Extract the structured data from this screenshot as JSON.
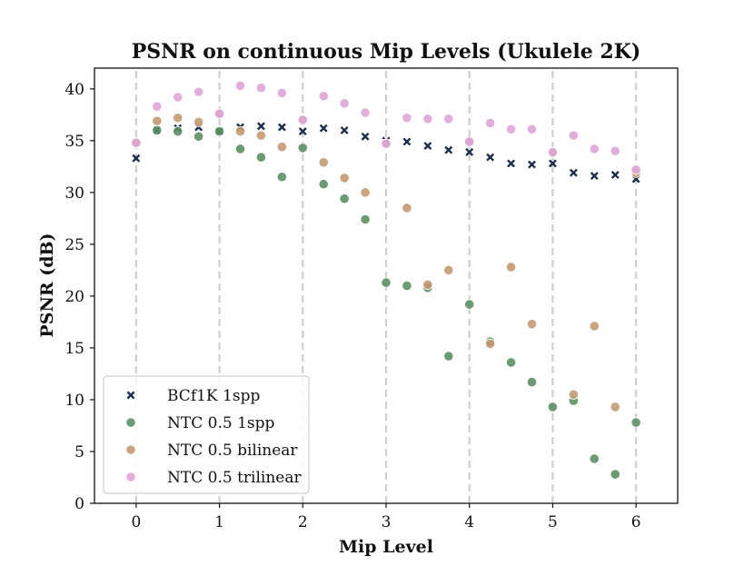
{
  "chart_data": {
    "type": "scatter",
    "title": "PSNR on continuous Mip Levels (Ukulele 2K)",
    "xlabel": "Mip Level",
    "ylabel": "PSNR (dB)",
    "xlim": [
      -0.5,
      6.5
    ],
    "ylim": [
      0,
      42
    ],
    "xticks": [
      0,
      1,
      2,
      3,
      4,
      5,
      6
    ],
    "yticks": [
      0,
      5,
      10,
      15,
      20,
      25,
      30,
      35,
      40
    ],
    "vlines": [
      0,
      1,
      2,
      3,
      4,
      5,
      6
    ],
    "legend_position": "bottom-left",
    "series": [
      {
        "name": "BCf1K 1spp",
        "marker": "x",
        "color": "#1c2e4a",
        "x": [
          0,
          0.25,
          0.5,
          0.75,
          1,
          1.25,
          1.5,
          1.75,
          2,
          2.25,
          2.5,
          2.75,
          3,
          3.25,
          3.5,
          3.75,
          4,
          4.25,
          4.5,
          4.75,
          5,
          5.25,
          5.5,
          5.75,
          6
        ],
        "y": [
          33.3,
          36.0,
          36.2,
          36.3,
          35.9,
          36.3,
          36.4,
          36.3,
          35.9,
          36.2,
          36.0,
          35.4,
          35.0,
          34.9,
          34.5,
          34.1,
          33.9,
          33.4,
          32.8,
          32.7,
          32.8,
          31.9,
          31.6,
          31.7,
          31.3
        ]
      },
      {
        "name": "NTC 0.5 1spp",
        "marker": "o",
        "color": "#5b8f64",
        "x": [
          0,
          0.25,
          0.5,
          0.75,
          1,
          1.25,
          1.5,
          1.75,
          2,
          2.25,
          2.5,
          2.75,
          3,
          3.25,
          3.5,
          3.75,
          4,
          4.25,
          4.5,
          4.75,
          5,
          5.25,
          5.5,
          5.75,
          6
        ],
        "y": [
          34.8,
          36.0,
          35.9,
          35.4,
          35.9,
          34.2,
          33.4,
          31.5,
          34.3,
          30.8,
          29.4,
          27.4,
          21.3,
          21.0,
          20.8,
          14.2,
          19.2,
          15.6,
          13.6,
          11.7,
          9.3,
          9.9,
          4.3,
          2.8,
          7.8
        ]
      },
      {
        "name": "NTC 0.5 bilinear",
        "marker": "o",
        "color": "#c29a72",
        "x": [
          0,
          0.25,
          0.5,
          0.75,
          1,
          1.25,
          1.5,
          1.75,
          2,
          2.25,
          2.5,
          2.75,
          3,
          3.25,
          3.5,
          3.75,
          4,
          4.25,
          4.5,
          4.75,
          5,
          5.25,
          5.5,
          5.75,
          6
        ],
        "y": [
          34.8,
          36.9,
          37.2,
          36.8,
          37.6,
          35.9,
          35.5,
          34.4,
          37.0,
          32.9,
          31.4,
          30.0,
          34.7,
          28.5,
          21.1,
          22.5,
          34.9,
          15.4,
          22.8,
          17.3,
          33.8,
          10.5,
          17.1,
          9.3,
          31.9
        ]
      },
      {
        "name": "NTC 0.5 trilinear",
        "marker": "o",
        "color": "#dfa6d8",
        "x": [
          0,
          0.25,
          0.5,
          0.75,
          1,
          1.25,
          1.5,
          1.75,
          2,
          2.25,
          2.5,
          2.75,
          3,
          3.25,
          3.5,
          3.75,
          4,
          4.25,
          4.5,
          4.75,
          5,
          5.25,
          5.5,
          5.75,
          6
        ],
        "y": [
          34.8,
          38.3,
          39.2,
          39.7,
          37.6,
          40.3,
          40.1,
          39.6,
          37.0,
          39.3,
          38.6,
          37.7,
          34.7,
          37.2,
          37.1,
          37.1,
          34.9,
          36.7,
          36.1,
          36.1,
          33.9,
          35.5,
          34.2,
          34.0,
          32.2
        ]
      }
    ]
  }
}
